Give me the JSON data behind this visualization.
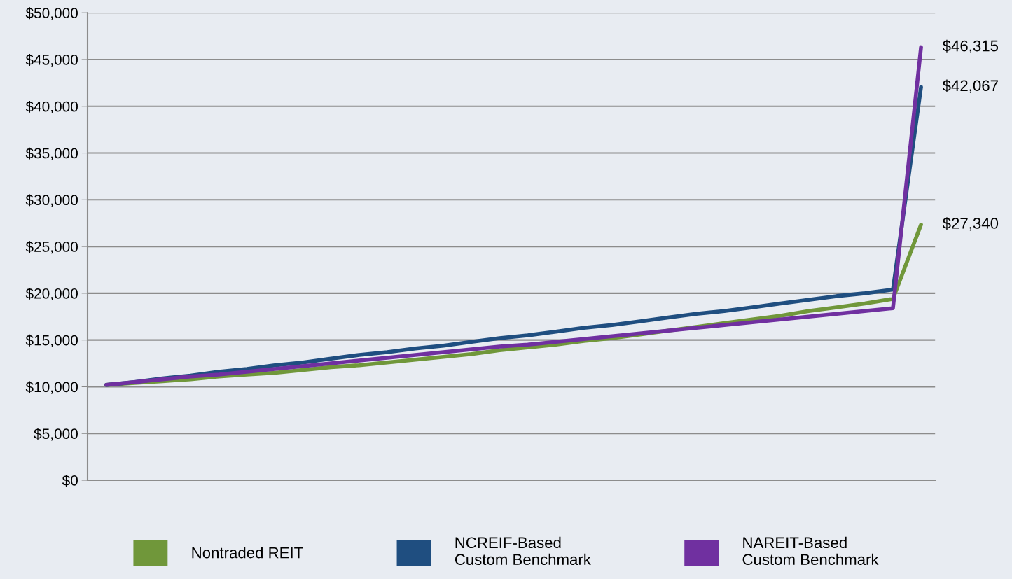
{
  "chart_data": {
    "type": "line",
    "categories": [
      null,
      null,
      null,
      null,
      null,
      null,
      null,
      null,
      null,
      null,
      null,
      null,
      null,
      null,
      null,
      null,
      null,
      null,
      null,
      null,
      null,
      null,
      null,
      null,
      null,
      null,
      null,
      null,
      null,
      null
    ],
    "series": [
      {
        "name": "Nontraded REIT",
        "color": "#70973a",
        "values": [
          10200,
          10400,
          10600,
          10800,
          11100,
          11300,
          11500,
          11800,
          12100,
          12300,
          12600,
          12900,
          13200,
          13500,
          13900,
          14200,
          14500,
          14900,
          15200,
          15600,
          16000,
          16400,
          16800,
          17200,
          17600,
          18100,
          18500,
          18900,
          19400,
          27340
        ],
        "value_labels": [
          null,
          null,
          null,
          null,
          null,
          null,
          null,
          null,
          null,
          null,
          null,
          null,
          null,
          null,
          null,
          null,
          null,
          null,
          null,
          null,
          null,
          null,
          null,
          null,
          null,
          null,
          null,
          null,
          null,
          "$27,340"
        ]
      },
      {
        "name": "NCREIF-Based\nCustom Benchmark",
        "color": "#1f4e80",
        "values": [
          10200,
          10500,
          10900,
          11200,
          11600,
          11900,
          12300,
          12600,
          13000,
          13400,
          13700,
          14100,
          14400,
          14800,
          15200,
          15500,
          15900,
          16300,
          16600,
          17000,
          17400,
          17800,
          18100,
          18500,
          18900,
          19300,
          19700,
          20000,
          20400,
          42067
        ],
        "value_labels": [
          null,
          null,
          null,
          null,
          null,
          null,
          null,
          null,
          null,
          null,
          null,
          null,
          null,
          null,
          null,
          null,
          null,
          null,
          null,
          null,
          null,
          null,
          null,
          null,
          null,
          null,
          null,
          null,
          null,
          "$42,067"
        ]
      },
      {
        "name": "NAREIT-Based\nCustom Benchmark",
        "color": "#7030a0",
        "values": [
          10200,
          10500,
          10800,
          11100,
          11300,
          11600,
          11900,
          12200,
          12500,
          12800,
          13100,
          13400,
          13700,
          14000,
          14300,
          14500,
          14800,
          15100,
          15400,
          15700,
          16000,
          16300,
          16600,
          16900,
          17200,
          17500,
          17800,
          18100,
          18400,
          46315
        ],
        "value_labels": [
          null,
          null,
          null,
          null,
          null,
          null,
          null,
          null,
          null,
          null,
          null,
          null,
          null,
          null,
          null,
          null,
          null,
          null,
          null,
          null,
          null,
          null,
          null,
          null,
          null,
          null,
          null,
          null,
          null,
          "$46,315"
        ]
      }
    ],
    "ylim": [
      0,
      50000
    ],
    "yticks": [
      {
        "value": 0,
        "label": "$0"
      },
      {
        "value": 5000,
        "label": "$5,000"
      },
      {
        "value": 10000,
        "label": "$10,000"
      },
      {
        "value": 15000,
        "label": "$15,000"
      },
      {
        "value": 20000,
        "label": "$20,000"
      },
      {
        "value": 25000,
        "label": "$25,000"
      },
      {
        "value": 30000,
        "label": "$30,000"
      },
      {
        "value": 35000,
        "label": "$35,000"
      },
      {
        "value": 40000,
        "label": "$40,000"
      },
      {
        "value": 45000,
        "label": "$45,000"
      },
      {
        "value": 50000,
        "label": "$50,000"
      }
    ],
    "grid": "y",
    "legend": "bottom",
    "marker": "none",
    "line_style": "solid"
  }
}
